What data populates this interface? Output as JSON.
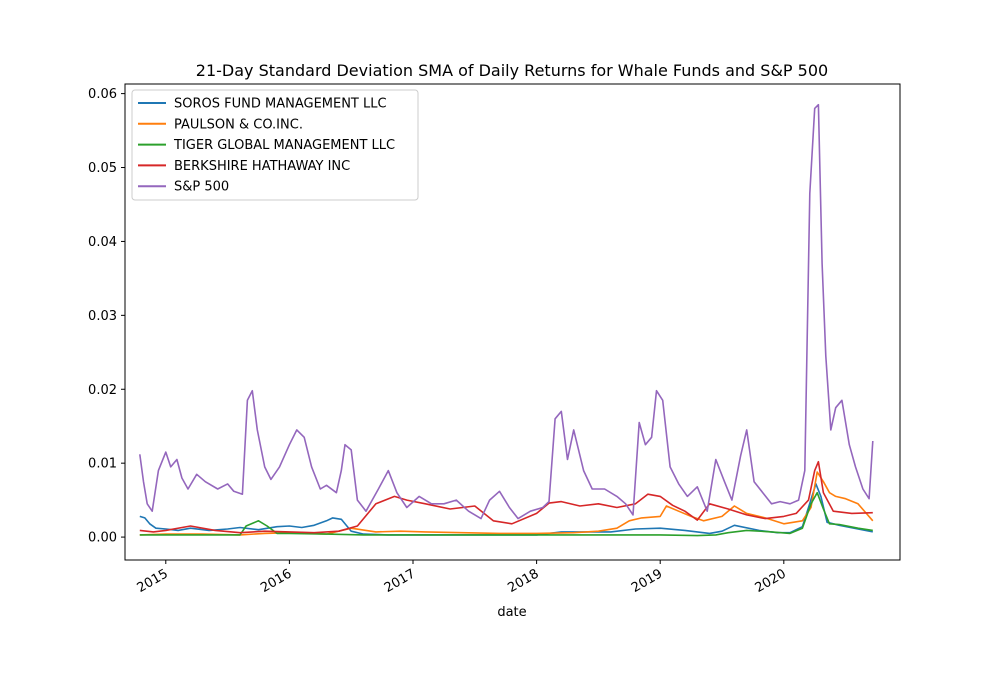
{
  "chart_data": {
    "type": "line",
    "title": "21-Day Standard Deviation SMA of Daily Returns for Whale Funds and S&P 500",
    "xlabel": "date",
    "ylabel": "",
    "xlim": [
      2014.67,
      2020.94
    ],
    "ylim": [
      -0.0031,
      0.0613
    ],
    "x_ticks": [
      2015,
      2016,
      2017,
      2018,
      2019,
      2020
    ],
    "x_tick_labels": [
      "2015",
      "2016",
      "2017",
      "2018",
      "2019",
      "2020"
    ],
    "y_ticks": [
      0.0,
      0.01,
      0.02,
      0.03,
      0.04,
      0.05,
      0.06
    ],
    "y_tick_labels": [
      "0.00",
      "0.01",
      "0.02",
      "0.03",
      "0.04",
      "0.05",
      "0.06"
    ],
    "grid": false,
    "legend_position": "upper-left",
    "series": [
      {
        "name": "SOROS FUND MANAGEMENT LLC",
        "color": "#1f77b4",
        "x": [
          2014.79,
          2014.83,
          2014.87,
          2014.92,
          2015.0,
          2015.1,
          2015.2,
          2015.35,
          2015.5,
          2015.6,
          2015.75,
          2015.9,
          2016.0,
          2016.1,
          2016.2,
          2016.3,
          2016.35,
          2016.42,
          2016.5,
          2016.6,
          2016.8,
          2017.0,
          2017.3,
          2017.6,
          2017.9,
          2018.0,
          2018.2,
          2018.4,
          2018.6,
          2018.8,
          2019.0,
          2019.2,
          2019.4,
          2019.5,
          2019.6,
          2019.8,
          2019.95,
          2020.05,
          2020.15,
          2020.2,
          2020.26,
          2020.3,
          2020.35,
          2020.45,
          2020.6,
          2020.72
        ],
        "y": [
          0.0028,
          0.0026,
          0.0018,
          0.0012,
          0.0011,
          0.0009,
          0.0012,
          0.0009,
          0.0011,
          0.0013,
          0.001,
          0.0014,
          0.0015,
          0.0013,
          0.0016,
          0.0022,
          0.0026,
          0.0024,
          0.0008,
          0.0004,
          0.0003,
          0.0003,
          0.0003,
          0.0003,
          0.0003,
          0.0003,
          0.0007,
          0.0007,
          0.0007,
          0.0011,
          0.0012,
          0.0009,
          0.0005,
          0.0008,
          0.0016,
          0.0009,
          0.0006,
          0.0006,
          0.0014,
          0.004,
          0.0072,
          0.0055,
          0.002,
          0.0016,
          0.0011,
          0.0007
        ]
      },
      {
        "name": "PAULSON & CO.INC.",
        "color": "#ff7f0e",
        "x": [
          2014.79,
          2015.0,
          2015.3,
          2015.6,
          2015.8,
          2016.0,
          2016.3,
          2016.5,
          2016.7,
          2016.9,
          2017.1,
          2017.4,
          2017.7,
          2018.0,
          2018.3,
          2018.5,
          2018.65,
          2018.75,
          2018.85,
          2019.0,
          2019.05,
          2019.15,
          2019.25,
          2019.35,
          2019.5,
          2019.6,
          2019.7,
          2019.85,
          2020.0,
          2020.15,
          2020.22,
          2020.27,
          2020.32,
          2020.37,
          2020.42,
          2020.5,
          2020.6,
          2020.72
        ],
        "y": [
          0.0003,
          0.0004,
          0.0004,
          0.0003,
          0.0005,
          0.0006,
          0.0004,
          0.0012,
          0.0007,
          0.0008,
          0.0007,
          0.0006,
          0.0005,
          0.0005,
          0.0006,
          0.0008,
          0.0012,
          0.0022,
          0.0026,
          0.0028,
          0.0042,
          0.0035,
          0.0028,
          0.0022,
          0.0028,
          0.0042,
          0.0032,
          0.0026,
          0.0018,
          0.0022,
          0.004,
          0.0088,
          0.0075,
          0.006,
          0.0055,
          0.0052,
          0.0045,
          0.0022
        ]
      },
      {
        "name": "TIGER GLOBAL MANAGEMENT LLC",
        "color": "#2ca02c",
        "x": [
          2014.79,
          2015.0,
          2015.3,
          2015.6,
          2015.65,
          2015.75,
          2015.82,
          2015.9,
          2016.0,
          2016.3,
          2016.6,
          2017.0,
          2017.5,
          2018.0,
          2018.5,
          2019.0,
          2019.3,
          2019.45,
          2019.55,
          2019.7,
          2019.9,
          2020.05,
          2020.15,
          2020.22,
          2020.27,
          2020.32,
          2020.37,
          2020.45,
          2020.6,
          2020.72
        ],
        "y": [
          0.0003,
          0.0003,
          0.0003,
          0.0003,
          0.0015,
          0.0022,
          0.0015,
          0.0005,
          0.0005,
          0.0004,
          0.0003,
          0.0003,
          0.0003,
          0.0003,
          0.0003,
          0.0003,
          0.0002,
          0.0003,
          0.0006,
          0.0009,
          0.0007,
          0.0005,
          0.0012,
          0.0045,
          0.006,
          0.0038,
          0.0018,
          0.0017,
          0.0012,
          0.0009
        ]
      },
      {
        "name": "BERKSHIRE HATHAWAY INC",
        "color": "#d62728",
        "x": [
          2014.79,
          2014.9,
          2015.0,
          2015.2,
          2015.4,
          2015.6,
          2015.8,
          2016.0,
          2016.2,
          2016.4,
          2016.55,
          2016.7,
          2016.85,
          2016.95,
          2017.1,
          2017.3,
          2017.5,
          2017.65,
          2017.8,
          2018.0,
          2018.1,
          2018.2,
          2018.35,
          2018.5,
          2018.65,
          2018.8,
          2018.9,
          2019.0,
          2019.1,
          2019.2,
          2019.3,
          2019.4,
          2019.55,
          2019.7,
          2019.85,
          2020.0,
          2020.1,
          2020.2,
          2020.25,
          2020.28,
          2020.32,
          2020.4,
          2020.55,
          2020.72
        ],
        "y": [
          0.0009,
          0.0007,
          0.0009,
          0.0015,
          0.0009,
          0.0006,
          0.0008,
          0.0007,
          0.0006,
          0.0008,
          0.0015,
          0.0045,
          0.0055,
          0.005,
          0.0045,
          0.0038,
          0.0042,
          0.0022,
          0.0018,
          0.0032,
          0.0046,
          0.0048,
          0.0042,
          0.0045,
          0.004,
          0.0045,
          0.0058,
          0.0055,
          0.0043,
          0.0035,
          0.0023,
          0.0045,
          0.0038,
          0.003,
          0.0025,
          0.0028,
          0.0032,
          0.005,
          0.009,
          0.0102,
          0.006,
          0.0035,
          0.0032,
          0.0033
        ]
      },
      {
        "name": "S&P 500",
        "color": "#9467bd",
        "x": [
          2014.79,
          2014.82,
          2014.85,
          2014.89,
          2014.94,
          2015.0,
          2015.04,
          2015.09,
          2015.13,
          2015.18,
          2015.25,
          2015.32,
          2015.42,
          2015.5,
          2015.55,
          2015.62,
          2015.66,
          2015.7,
          2015.74,
          2015.8,
          2015.85,
          2015.92,
          2016.0,
          2016.06,
          2016.12,
          2016.18,
          2016.25,
          2016.3,
          2016.38,
          2016.42,
          2016.45,
          2016.5,
          2016.55,
          2016.62,
          2016.72,
          2016.8,
          2016.87,
          2016.95,
          2017.05,
          2017.15,
          2017.25,
          2017.35,
          2017.45,
          2017.55,
          2017.62,
          2017.7,
          2017.78,
          2017.85,
          2017.95,
          2018.05,
          2018.1,
          2018.15,
          2018.2,
          2018.25,
          2018.3,
          2018.38,
          2018.45,
          2018.55,
          2018.65,
          2018.72,
          2018.78,
          2018.83,
          2018.88,
          2018.93,
          2018.97,
          2019.02,
          2019.08,
          2019.15,
          2019.22,
          2019.3,
          2019.38,
          2019.45,
          2019.52,
          2019.58,
          2019.65,
          2019.7,
          2019.76,
          2019.83,
          2019.9,
          2019.97,
          2020.05,
          2020.12,
          2020.17,
          2020.21,
          2020.25,
          2020.28,
          2020.31,
          2020.34,
          2020.38,
          2020.42,
          2020.47,
          2020.53,
          2020.58,
          2020.64,
          2020.69,
          2020.72
        ],
        "y": [
          0.0112,
          0.0075,
          0.0045,
          0.0035,
          0.009,
          0.0115,
          0.0095,
          0.0105,
          0.008,
          0.0065,
          0.0085,
          0.0075,
          0.0065,
          0.0072,
          0.0062,
          0.0058,
          0.0185,
          0.0198,
          0.0145,
          0.0095,
          0.0078,
          0.0095,
          0.0125,
          0.0145,
          0.0135,
          0.0095,
          0.0065,
          0.007,
          0.006,
          0.009,
          0.0125,
          0.0118,
          0.005,
          0.0035,
          0.0065,
          0.009,
          0.006,
          0.004,
          0.0055,
          0.0045,
          0.0045,
          0.005,
          0.0035,
          0.0025,
          0.005,
          0.0062,
          0.004,
          0.0025,
          0.0035,
          0.004,
          0.0048,
          0.016,
          0.017,
          0.0105,
          0.0145,
          0.009,
          0.0065,
          0.0065,
          0.0055,
          0.0045,
          0.003,
          0.0155,
          0.0125,
          0.0135,
          0.0198,
          0.0185,
          0.0095,
          0.0072,
          0.0055,
          0.0068,
          0.0035,
          0.0105,
          0.0075,
          0.005,
          0.011,
          0.0145,
          0.0075,
          0.006,
          0.0045,
          0.0048,
          0.0045,
          0.005,
          0.009,
          0.0465,
          0.058,
          0.0585,
          0.037,
          0.0245,
          0.0145,
          0.0175,
          0.0185,
          0.0125,
          0.0095,
          0.0065,
          0.0052,
          0.013
        ]
      }
    ]
  }
}
